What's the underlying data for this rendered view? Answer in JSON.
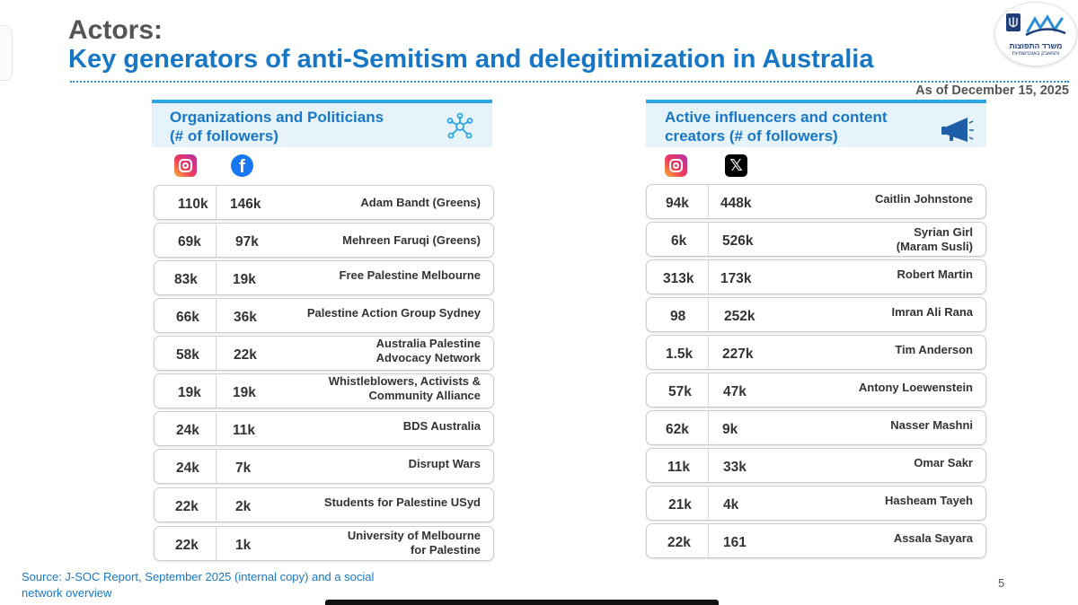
{
  "header": {
    "title_line1": "Actors:",
    "title_line2": "Key generators of anti-Semitism and delegitimization in Australia",
    "date": "As of December 15, 2025"
  },
  "logo": {
    "line1": "משרד התפוצות",
    "line2": "והמאבק באנטישמיות"
  },
  "left_panel": {
    "heading": "Organizations and Politicians (# of followers)",
    "heading_line1": "Organizations and Politicians",
    "heading_line2": "(# of followers)",
    "icon": "network-icon",
    "platform1": "instagram-icon",
    "platform2": "facebook-icon",
    "rows": [
      {
        "v1": "110k",
        "v2": "146k",
        "name": "Adam Bandt (Greens)"
      },
      {
        "v1": "69k",
        "v2": "97k",
        "name": "Mehreen Faruqi (Greens)"
      },
      {
        "v1": "83k",
        "v2": "19k",
        "name": "Free Palestine Melbourne"
      },
      {
        "v1": "66k",
        "v2": "36k",
        "name": "Palestine Action Group Sydney"
      },
      {
        "v1": "58k",
        "v2": "22k",
        "name": "Australia Palestine Advocacy Network",
        "name_l1": "Australia Palestine",
        "name_l2": "Advocacy Network"
      },
      {
        "v1": "19k",
        "v2": "19k",
        "name": "Whistleblowers, Activists & Community Alliance",
        "name_l1": "Whistleblowers, Activists &",
        "name_l2": "Community Alliance"
      },
      {
        "v1": "24k",
        "v2": "11k",
        "name": "BDS Australia"
      },
      {
        "v1": "24k",
        "v2": "7k",
        "name": "Disrupt Wars"
      },
      {
        "v1": "22k",
        "v2": "2k",
        "name": "Students for Palestine USyd"
      },
      {
        "v1": "22k",
        "v2": "1k",
        "name": "University of Melbourne for Palestine",
        "name_l1": "University of Melbourne",
        "name_l2": "for Palestine"
      }
    ]
  },
  "right_panel": {
    "heading": "Active influencers and content creators (# of followers)",
    "heading_line1": "Active influencers and content",
    "heading_line2": "creators (# of followers)",
    "icon": "megaphone-icon",
    "platform1": "instagram-icon",
    "platform2": "x-icon",
    "rows": [
      {
        "v1": "94k",
        "v2": "448k",
        "name": "Caitlin Johnstone"
      },
      {
        "v1": "6k",
        "v2": "526k",
        "name": "Syrian Girl (Maram Susli)",
        "name_l1": "Syrian Girl",
        "name_l2": "(Maram Susli)"
      },
      {
        "v1": "313k",
        "v2": "173k",
        "name": "Robert Martin"
      },
      {
        "v1": "98",
        "v2": "252k",
        "name": "Imran Ali Rana"
      },
      {
        "v1": "1.5k",
        "v2": "227k",
        "name": "Tim Anderson"
      },
      {
        "v1": "57k",
        "v2": "47k",
        "name": "Antony Loewenstein"
      },
      {
        "v1": "62k",
        "v2": "9k",
        "name": "Nasser Mashni"
      },
      {
        "v1": "11k",
        "v2": "33k",
        "name": "Omar Sakr"
      },
      {
        "v1": "21k",
        "v2": "4k",
        "name": "Hasheam Tayeh"
      },
      {
        "v1": "22k",
        "v2": "161",
        "name": "Assala Sayara"
      }
    ]
  },
  "footer": {
    "source": "Source: J-SOC Report, September 2025 (internal copy) and a social network overview",
    "page_number": "5"
  },
  "colors": {
    "accent_blue": "#1877c5",
    "header_bar": "#29a6e3",
    "header_bg": "#e6f3fb",
    "title_gray": "#555555"
  }
}
